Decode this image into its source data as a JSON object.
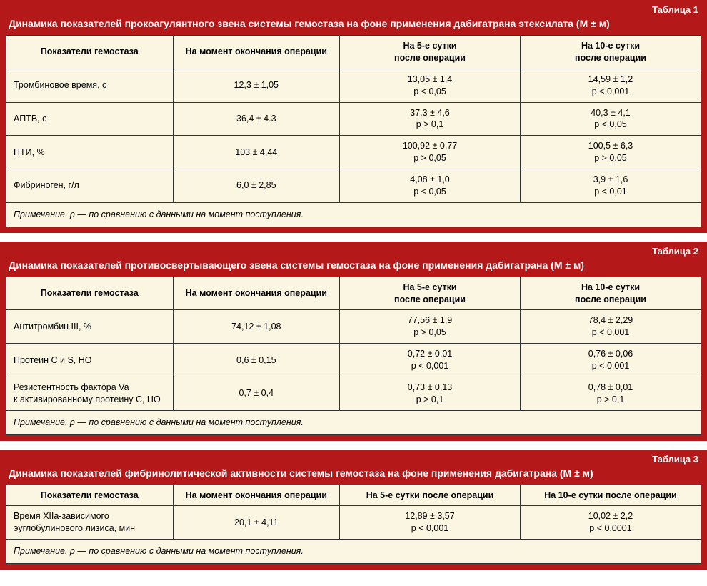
{
  "colors": {
    "block_bg": "#b41818",
    "table_bg": "#fbf6e2",
    "border": "#333333",
    "header_text": "#ffffff"
  },
  "column_widths": [
    "24%",
    "24%",
    "26%",
    "26%"
  ],
  "tables": [
    {
      "label": "Таблица 1",
      "title": "Динамика показателей прокоагулянтного звена системы гемостаза на фоне применения дабигатрана этексилата (М ± м)",
      "columns": [
        "Показатели гемостаза",
        "На момент окончания операции",
        "На 5-е сутки\nпосле операции",
        "На 10-е сутки\nпосле операции"
      ],
      "rows": [
        {
          "label": "Тромбиновое время, с",
          "cells": [
            "12,3 ± 1,05",
            "13,05 ± 1,4\np < 0,05",
            "14,59 ± 1,2\np < 0,001"
          ]
        },
        {
          "label": "АПТВ, с",
          "cells": [
            "36,4 ± 4.3",
            "37,3 ± 4,6\np > 0,1",
            "40,3 ± 4,1\np < 0,05"
          ]
        },
        {
          "label": "ПТИ, %",
          "cells": [
            "103 ± 4,44",
            "100,92 ± 0,77\np > 0,05",
            "100,5 ± 6,3\np > 0,05"
          ]
        },
        {
          "label": "Фибриноген, г/л",
          "cells": [
            "6,0 ± 2,85",
            "4,08 ± 1,0\np < 0,05",
            "3,9 ± 1,6\np < 0,01"
          ]
        }
      ],
      "note": "Примечание. p — по сравнению с данными на момент поступления."
    },
    {
      "label": "Таблица 2",
      "title": "Динамика показателей противосвертывающего звена системы гемостаза на фоне применения дабигатрана (М ± м)",
      "columns": [
        "Показатели гемостаза",
        "На момент окончания операции",
        "На 5-е сутки\nпосле операции",
        "На 10-е сутки\nпосле операции"
      ],
      "rows": [
        {
          "label": "Антитромбин III, %",
          "cells": [
            "74,12 ± 1,08",
            "77,56 ± 1,9\np > 0,05",
            "78,4 ± 2,29\np < 0,001"
          ]
        },
        {
          "label": "Протеин С и S, НО",
          "cells": [
            "0,6 ± 0,15",
            "0,72 ± 0,01\np < 0,001",
            "0,76 ± 0,06\np < 0,001"
          ]
        },
        {
          "label": "Резистентность фактора Va\nк активированному протеину С, НО",
          "cells": [
            "0,7 ± 0,4",
            "0,73 ± 0,13\np > 0,1",
            "0,78 ± 0,01\np > 0,1"
          ]
        }
      ],
      "note": "Примечание. p — по сравнению с данными на момент поступления."
    },
    {
      "label": "Таблица 3",
      "title": "Динамика показателей фибринолитической активности системы гемостаза на фоне применения дабигатрана (М ± м)",
      "columns": [
        "Показатели гемостаза",
        "На момент окончания операции",
        "На 5-е сутки после операции",
        "На 10-е сутки после операции"
      ],
      "rows": [
        {
          "label": "Время XIIа-зависимого\nэуглобулинового лизиса, мин",
          "cells": [
            "20,1 ± 4,11",
            "12,89 ± 3,57\np < 0,001",
            "10,02 ± 2,2\np < 0,0001"
          ]
        }
      ],
      "note": "Примечание. p — по сравнению с данными на момент поступления."
    }
  ]
}
